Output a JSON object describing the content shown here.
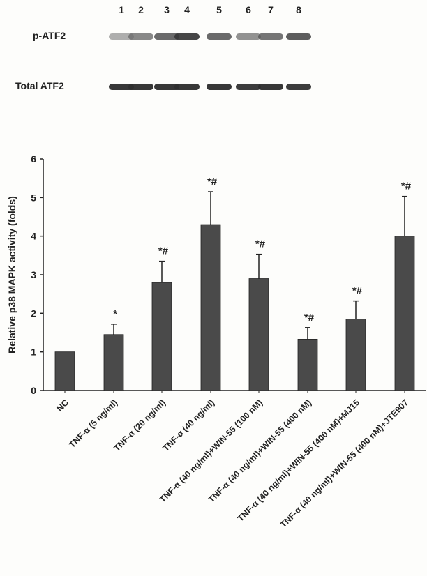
{
  "blot": {
    "lanes": [
      "1",
      "2",
      "3",
      "4",
      "5",
      "6",
      "7",
      "8"
    ],
    "rows": [
      {
        "label": "p-ATF2",
        "intensity": [
          0.35,
          0.55,
          0.7,
          0.85,
          0.7,
          0.5,
          0.65,
          0.75
        ]
      },
      {
        "label": "Total ATF2",
        "intensity": [
          0.9,
          0.9,
          0.9,
          0.9,
          0.9,
          0.88,
          0.9,
          0.88
        ]
      }
    ]
  },
  "chart_data": {
    "type": "bar",
    "title": "",
    "xlabel": "",
    "ylabel": "Relative p38 MAPK activity (folds)",
    "ylim": [
      0,
      6
    ],
    "yticks": [
      0,
      1,
      2,
      3,
      4,
      5,
      6
    ],
    "grid": false,
    "legend": "none",
    "bar_color": "#4a4a4a",
    "categories": [
      "NC",
      "TNF-α (5 ng/ml)",
      "TNF-α (20 ng/ml)",
      "TNF-α (40 ng/ml)",
      "TNF-α (40 ng/ml)+WIN-55 (100 nM)",
      "TNF-α (40 ng/ml)+WIN-55 (400 nM)",
      "TNF-α (40 ng/ml)+WIN-55 (400 nM)+MJ15",
      "TNF-α (40 ng/ml)+WIN-55 (400 nM)+JTE907"
    ],
    "values": [
      1.0,
      1.45,
      2.8,
      4.3,
      2.9,
      1.33,
      1.85,
      4.0
    ],
    "errors": [
      0,
      0.27,
      0.55,
      0.85,
      0.63,
      0.3,
      0.47,
      1.03
    ],
    "annotations": [
      "",
      "*",
      "*#",
      "*#",
      "*#",
      "*#",
      "*#",
      "*#"
    ]
  }
}
